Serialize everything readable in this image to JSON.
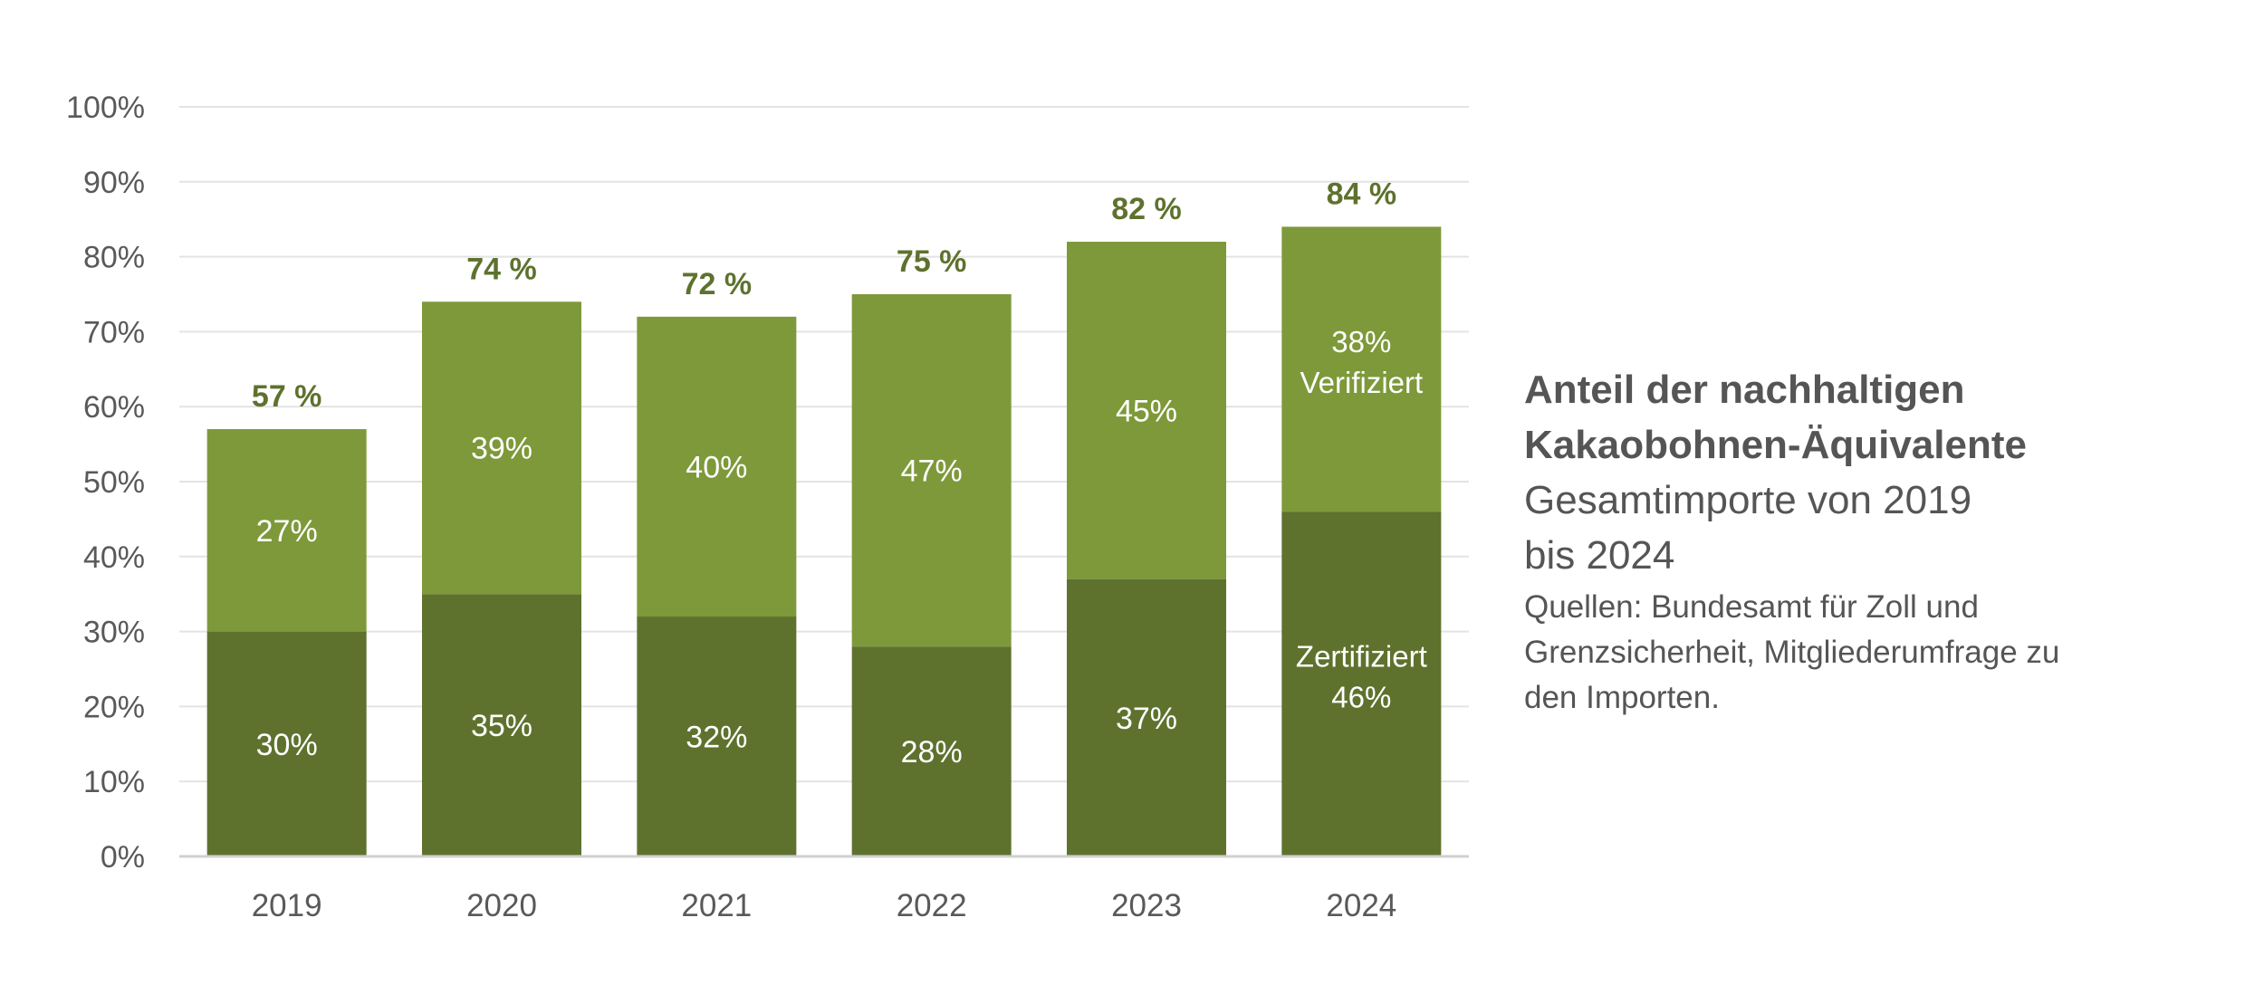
{
  "colors": {
    "certified": "#5e722e",
    "verified": "#7e993a",
    "total_label": "#5e722e",
    "axis_text": "#595959",
    "grid": "#e3e3e3",
    "side_text": "#555555"
  },
  "side_panel": {
    "title_line1": "Anteil der nachhaltigen",
    "title_line2": "Kakaobohnen-Äquivalente",
    "subtitle_line1": "Gesamtimporte von 2019",
    "subtitle_line2": "bis 2024",
    "source_line1": "Quellen: Bundesamt für Zoll und",
    "source_line2": "Grenzsicherheit, Mitgliederumfrage zu",
    "source_line3": "den Importen."
  },
  "chart_data": {
    "type": "bar",
    "stacked": true,
    "categories": [
      "2019",
      "2020",
      "2021",
      "2022",
      "2023",
      "2024"
    ],
    "series": [
      {
        "name": "Zertifiziert",
        "values": [
          30,
          35,
          32,
          28,
          37,
          46
        ],
        "labels": [
          "30%",
          "35%",
          "32%",
          "28%",
          "37%",
          "46%"
        ]
      },
      {
        "name": "Verifiziert",
        "values": [
          27,
          39,
          40,
          47,
          45,
          38
        ],
        "labels": [
          "27%",
          "39%",
          "40%",
          "47%",
          "45%",
          "38%"
        ]
      }
    ],
    "totals": [
      57,
      74,
      72,
      75,
      82,
      84
    ],
    "total_labels": [
      "57 %",
      "74 %",
      "72 %",
      "75 %",
      "82 %",
      "84 %"
    ],
    "y_ticks": [
      "0%",
      "10%",
      "20%",
      "30%",
      "40%",
      "50%",
      "60%",
      "70%",
      "80%",
      "90%",
      "100%"
    ],
    "ylim": [
      0,
      100
    ],
    "grid": true,
    "series_names_shown_in_last_bar": true
  }
}
